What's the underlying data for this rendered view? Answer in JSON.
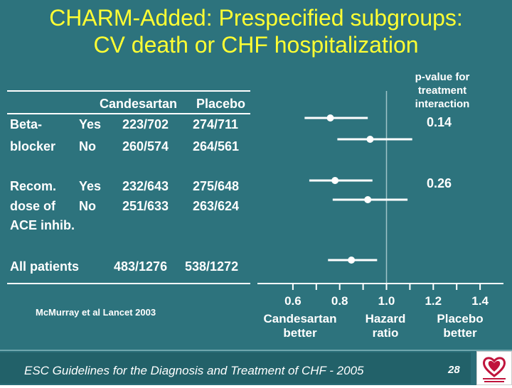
{
  "title": {
    "line1": "CHARM-Added: Prespecified subgroups:",
    "line2": "CV death or CHF hospitalization"
  },
  "table": {
    "col_candesartan": "Candesartan",
    "col_placebo": "Placebo",
    "rows": [
      {
        "group1": "Beta-",
        "group2": "",
        "level": "Yes",
        "candesartan": "223/702",
        "placebo": "274/711"
      },
      {
        "group1": "blocker",
        "group2": "",
        "level": "No",
        "candesartan": "260/574",
        "placebo": "264/561"
      },
      {
        "group1": "Recom.",
        "group2": "",
        "level": "Yes",
        "candesartan": "232/643",
        "placebo": "275/648"
      },
      {
        "group1": "dose of",
        "group2": "ACE inhib.",
        "level": "No",
        "candesartan": "251/633",
        "placebo": "263/624"
      },
      {
        "group1": "All patients",
        "group2": "",
        "level": "",
        "candesartan": "483/1276",
        "placebo": "538/1272"
      }
    ]
  },
  "pvalue_header": [
    "p-value for",
    "treatment",
    "interaction"
  ],
  "pvalues": [
    "0.14",
    "0.26"
  ],
  "citation": "McMurray et al Lancet 2003",
  "chart_data": {
    "type": "scatter",
    "subtype": "forest-plot",
    "xlim": [
      0.5,
      1.5
    ],
    "reference_line": 1.0,
    "xticks": [
      0.6,
      0.8,
      1.0,
      1.2,
      1.4
    ],
    "xtick_labels": [
      "0.6",
      "0.8",
      "1.0",
      "1.2",
      "1.4"
    ],
    "xlabel_left": [
      "Candesartan",
      "better"
    ],
    "xlabel_center": [
      "Hazard",
      "ratio"
    ],
    "xlabel_right": [
      "Placebo",
      "better"
    ],
    "rows": [
      {
        "subgroup": "Beta-blocker Yes",
        "hr": 0.76,
        "ci_low": 0.65,
        "ci_high": 0.92
      },
      {
        "subgroup": "Beta-blocker No",
        "hr": 0.93,
        "ci_low": 0.79,
        "ci_high": 1.11
      },
      {
        "subgroup": "Recom. dose of ACE inhib. Yes",
        "hr": 0.78,
        "ci_low": 0.67,
        "ci_high": 0.94
      },
      {
        "subgroup": "Recom. dose of ACE inhib. No",
        "hr": 0.92,
        "ci_low": 0.77,
        "ci_high": 1.09
      },
      {
        "subgroup": "All patients",
        "hr": 0.85,
        "ci_low": 0.75,
        "ci_high": 0.96
      }
    ],
    "marker_color": "#ffffff"
  },
  "footer": {
    "text": "ESC Guidelines for the Diagnosis and Treatment of CHF - 2005",
    "page": "28"
  },
  "colors": {
    "background": "#2d737d",
    "title": "#ffff33",
    "text": "#ffffff"
  }
}
